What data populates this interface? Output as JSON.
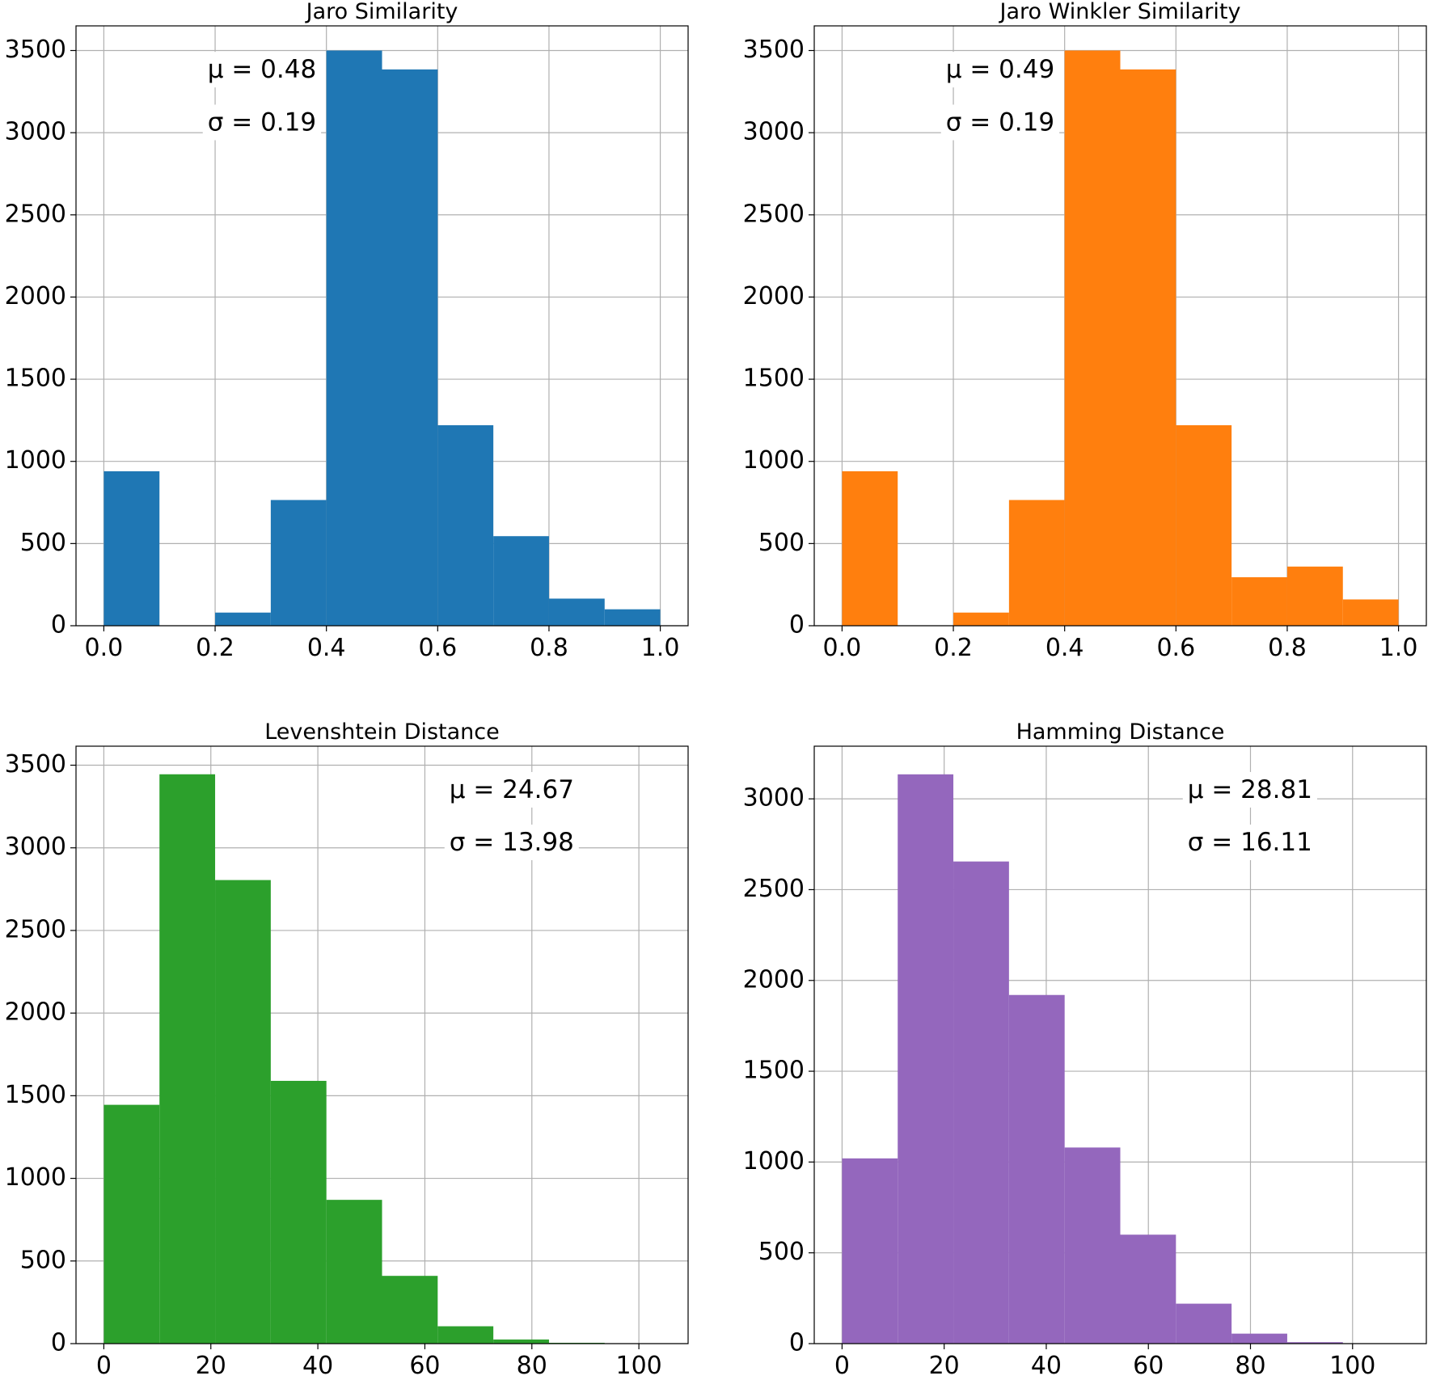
{
  "chart_data": [
    {
      "type": "bar",
      "title": "Jaro Similarity",
      "color": "#1f77b4",
      "bin_edges": [
        0.0,
        0.1,
        0.2,
        0.3,
        0.4,
        0.5,
        0.6,
        0.7,
        0.8,
        0.9,
        1.0
      ],
      "values": [
        940,
        0,
        80,
        765,
        3500,
        3385,
        1220,
        545,
        165,
        100
      ],
      "xlim": [
        -0.05,
        1.05
      ],
      "ylim": [
        0,
        3650
      ],
      "xticks": [
        0.0,
        0.2,
        0.4,
        0.6,
        0.8,
        1.0
      ],
      "xtick_labels": [
        "0.0",
        "0.2",
        "0.4",
        "0.6",
        "0.8",
        "1.0"
      ],
      "yticks": [
        0,
        500,
        1000,
        1500,
        2000,
        2500,
        3000,
        3500
      ],
      "ytick_labels": [
        "0",
        "500",
        "1000",
        "1500",
        "2000",
        "2500",
        "3000",
        "3500"
      ],
      "grid": true,
      "stats": {
        "mu": "μ = 0.48",
        "sigma": "σ = 0.19",
        "position": "top-left"
      }
    },
    {
      "type": "bar",
      "title": "Jaro Winkler Similarity",
      "color": "#ff7f0e",
      "bin_edges": [
        0.0,
        0.1,
        0.2,
        0.3,
        0.4,
        0.5,
        0.6,
        0.7,
        0.8,
        0.9,
        1.0
      ],
      "values": [
        940,
        0,
        80,
        765,
        3500,
        3385,
        1220,
        295,
        360,
        160
      ],
      "xlim": [
        -0.05,
        1.05
      ],
      "ylim": [
        0,
        3650
      ],
      "xticks": [
        0.0,
        0.2,
        0.4,
        0.6,
        0.8,
        1.0
      ],
      "xtick_labels": [
        "0.0",
        "0.2",
        "0.4",
        "0.6",
        "0.8",
        "1.0"
      ],
      "yticks": [
        0,
        500,
        1000,
        1500,
        2000,
        2500,
        3000,
        3500
      ],
      "ytick_labels": [
        "0",
        "500",
        "1000",
        "1500",
        "2000",
        "2500",
        "3000",
        "3500"
      ],
      "grid": true,
      "stats": {
        "mu": "μ = 0.49",
        "sigma": "σ = 0.19",
        "position": "top-left"
      }
    },
    {
      "type": "bar",
      "title": "Levenshtein Distance",
      "color": "#2ca02c",
      "bin_edges": [
        0,
        10.4,
        20.8,
        31.2,
        41.6,
        52,
        62.4,
        72.8,
        83.2,
        93.6,
        104
      ],
      "values": [
        1445,
        3445,
        2805,
        1590,
        870,
        410,
        105,
        25,
        5,
        0
      ],
      "xlim": [
        -5.2,
        109.2
      ],
      "ylim": [
        0,
        3615
      ],
      "xticks": [
        0,
        20,
        40,
        60,
        80,
        100
      ],
      "xtick_labels": [
        "0",
        "20",
        "40",
        "60",
        "80",
        "100"
      ],
      "yticks": [
        0,
        500,
        1000,
        1500,
        2000,
        2500,
        3000,
        3500
      ],
      "ytick_labels": [
        "0",
        "500",
        "1000",
        "1500",
        "2000",
        "2500",
        "3000",
        "3500"
      ],
      "grid": true,
      "stats": {
        "mu": "μ = 24.67",
        "sigma": "σ = 13.98",
        "position": "top-right"
      }
    },
    {
      "type": "bar",
      "title": "Hamming Distance",
      "color": "#9467bd",
      "bin_edges": [
        0,
        10.9,
        21.8,
        32.7,
        43.6,
        54.5,
        65.4,
        76.3,
        87.2,
        98.1,
        109
      ],
      "values": [
        1020,
        3135,
        2655,
        1920,
        1080,
        600,
        220,
        55,
        8,
        0
      ],
      "xlim": [
        -5.45,
        114.45
      ],
      "ylim": [
        0,
        3290
      ],
      "xticks": [
        0,
        20,
        40,
        60,
        80,
        100
      ],
      "xtick_labels": [
        "0",
        "20",
        "40",
        "60",
        "80",
        "100"
      ],
      "yticks": [
        0,
        500,
        1000,
        1500,
        2000,
        2500,
        3000
      ],
      "ytick_labels": [
        "0",
        "500",
        "1000",
        "1500",
        "2000",
        "2500",
        "3000"
      ],
      "grid": true,
      "stats": {
        "mu": "μ = 28.81",
        "sigma": "σ = 16.11",
        "position": "top-right"
      }
    }
  ]
}
